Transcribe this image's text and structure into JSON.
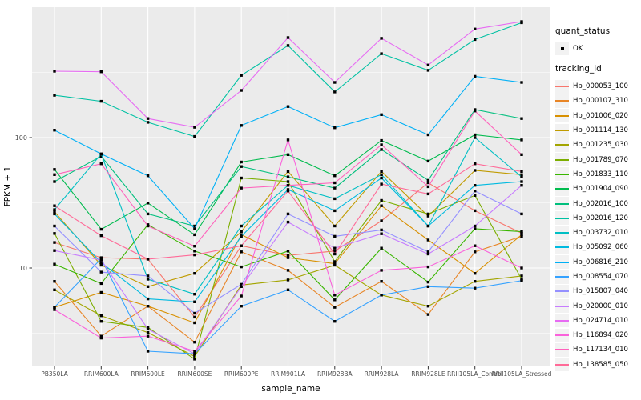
{
  "chart": {
    "panel_bg": "#EBEBEB",
    "grid_color": "#FFFFFF",
    "tick_color": "#333333",
    "tick_label_color": "#4D4D4D",
    "axis_title_color": "#000000",
    "marker_color": "#000000",
    "legend_key_bg": "#F2F2F2"
  },
  "legend": {
    "quant_title": "quant_status",
    "quant_items": [
      {
        "label": "OK",
        "marker": "black-point"
      }
    ],
    "tracking_title": "tracking_id"
  },
  "chart_data": {
    "type": "line",
    "title": "",
    "xlabel": "sample_name",
    "ylabel": "FPKM + 1",
    "y_scale": "log10",
    "ylim": [
      1.8,
      1015
    ],
    "y_ticks": [
      10,
      100
    ],
    "grid": true,
    "legend_position": "right",
    "marker": "small-black-square",
    "categories": [
      "PB350LA",
      "RRIM600LA",
      "RRIM600LE",
      "RRIM600SE",
      "RRIM600PE",
      "RRIM901LA",
      "RRIM928BA",
      "RRIM928LA",
      "RRIM928LE",
      "RRII105LA_Control",
      "RRII105LA_Stressed"
    ],
    "series": [
      {
        "name": "Hb_000053_100",
        "color": "#F8766D",
        "values": [
          15.7,
          12.0,
          11.7,
          4.2,
          14.8,
          12.5,
          13.5,
          23,
          45,
          27.5,
          18.5
        ]
      },
      {
        "name": "Hb_000107_310",
        "color": "#E88526",
        "values": [
          7.9,
          3.0,
          5.1,
          2.7,
          13.3,
          9.6,
          5.0,
          7.9,
          4.4,
          13.3,
          17.5
        ]
      },
      {
        "name": "Hb_001006_020",
        "color": "#D89000",
        "values": [
          5.0,
          6.5,
          5.1,
          3.8,
          18,
          12,
          10.8,
          30,
          16.4,
          9.1,
          18
        ]
      },
      {
        "name": "Hb_001114_130",
        "color": "#C09B00",
        "values": [
          27,
          10.5,
          7.2,
          9.1,
          19,
          55,
          21,
          55,
          25,
          56,
          52
        ]
      },
      {
        "name": "Hb_001235_030",
        "color": "#A3A500",
        "values": [
          6.8,
          4.3,
          3.2,
          2.1,
          7.4,
          8.1,
          10.5,
          6.2,
          5.1,
          7.9,
          8.7
        ]
      },
      {
        "name": "Hb_001789_070",
        "color": "#7CAE00",
        "values": [
          18.4,
          3.9,
          3.5,
          2.0,
          49,
          46,
          11.2,
          33,
          26,
          36,
          8.2
        ]
      },
      {
        "name": "Hb_001833_110",
        "color": "#39B600",
        "values": [
          10.7,
          7.6,
          21.5,
          13.5,
          10.2,
          13.5,
          5.7,
          14.2,
          7.8,
          20,
          19
        ]
      },
      {
        "name": "Hb_001904_090",
        "color": "#00BB4E",
        "values": [
          57,
          19.8,
          31.5,
          18,
          65,
          74,
          51,
          95,
          66,
          105,
          96
        ]
      },
      {
        "name": "Hb_002016_100",
        "color": "#00BF7D",
        "values": [
          46,
          72,
          26,
          21,
          60,
          50,
          41,
          81,
          47,
          164,
          140
        ]
      },
      {
        "name": "Hb_002016_120",
        "color": "#00C1A3",
        "values": [
          211,
          190,
          131,
          102,
          300,
          508,
          224,
          440,
          328,
          565,
          760
        ]
      },
      {
        "name": "Hb_003732_010",
        "color": "#00BFC4",
        "values": [
          28,
          75,
          8.2,
          6.3,
          21,
          43,
          34,
          52,
          21,
          100,
          50
        ]
      },
      {
        "name": "Hb_005092_060",
        "color": "#00BAE0",
        "values": [
          26,
          11,
          5.8,
          5.5,
          17.5,
          40,
          27.5,
          49,
          21,
          43,
          46
        ]
      },
      {
        "name": "Hb_006816_210",
        "color": "#00B0F6",
        "values": [
          114,
          75,
          51,
          20,
          124,
          173,
          119,
          150,
          105,
          295,
          265
        ]
      },
      {
        "name": "Hb_008554_070",
        "color": "#35A2FF",
        "values": [
          5.0,
          11.8,
          2.3,
          2.2,
          5.1,
          6.8,
          3.9,
          6.2,
          7.2,
          7.0,
          8.0
        ]
      },
      {
        "name": "Hb_015807_040",
        "color": "#9590FF",
        "values": [
          21,
          9.3,
          8.7,
          4.5,
          7.5,
          26,
          17.5,
          19.6,
          13.3,
          39,
          26
        ]
      },
      {
        "name": "Hb_020000_010",
        "color": "#C77CFF",
        "values": [
          13.6,
          11.5,
          3.4,
          2.2,
          7.2,
          22.5,
          14.2,
          18.3,
          12.8,
          21,
          43
        ]
      },
      {
        "name": "Hb_024714_010",
        "color": "#E76BF3",
        "values": [
          323,
          320,
          140,
          120,
          230,
          585,
          265,
          577,
          360,
          680,
          776
        ]
      },
      {
        "name": "Hb_116894_020",
        "color": "#FA62DB",
        "values": [
          4.8,
          2.9,
          3.0,
          2.3,
          6.1,
          96,
          6.2,
          9.6,
          10.2,
          14.8,
          10
        ]
      },
      {
        "name": "Hb_117134_010",
        "color": "#FF62BC",
        "values": [
          52,
          63,
          21,
          14.7,
          41,
          43,
          45,
          88,
          42,
          160,
          74
        ]
      },
      {
        "name": "Hb_138585_050",
        "color": "#FF6A98",
        "values": [
          30,
          17.7,
          11.7,
          12.6,
          14.8,
          39,
          12.8,
          44,
          37,
          63,
          55
        ]
      }
    ]
  }
}
